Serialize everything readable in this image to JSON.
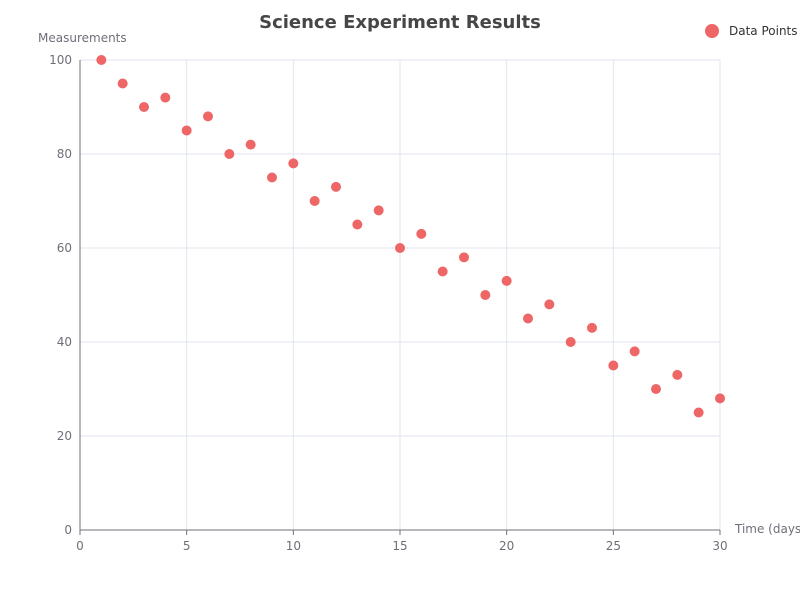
{
  "chart_data": {
    "type": "scatter",
    "title": "Science Experiment Results",
    "xlabel": "Time (days)",
    "ylabel": "Measurements",
    "xlim": [
      0,
      30
    ],
    "ylim": [
      0,
      100
    ],
    "x_ticks": [
      0,
      5,
      10,
      15,
      20,
      25,
      30
    ],
    "y_ticks": [
      0,
      20,
      40,
      60,
      80,
      100
    ],
    "grid": true,
    "legend_position": "top-right",
    "series": [
      {
        "name": "Data Points",
        "color": "#ee6666",
        "points": [
          [
            1,
            100
          ],
          [
            2,
            95
          ],
          [
            3,
            90
          ],
          [
            4,
            92
          ],
          [
            5,
            85
          ],
          [
            6,
            88
          ],
          [
            7,
            80
          ],
          [
            8,
            82
          ],
          [
            9,
            75
          ],
          [
            10,
            78
          ],
          [
            11,
            70
          ],
          [
            12,
            73
          ],
          [
            13,
            65
          ],
          [
            14,
            68
          ],
          [
            15,
            60
          ],
          [
            16,
            63
          ],
          [
            17,
            55
          ],
          [
            18,
            58
          ],
          [
            19,
            50
          ],
          [
            20,
            53
          ],
          [
            21,
            45
          ],
          [
            22,
            48
          ],
          [
            23,
            40
          ],
          [
            24,
            43
          ],
          [
            25,
            35
          ],
          [
            26,
            38
          ],
          [
            27,
            30
          ],
          [
            28,
            33
          ],
          [
            29,
            25
          ],
          [
            30,
            28
          ]
        ]
      }
    ]
  }
}
